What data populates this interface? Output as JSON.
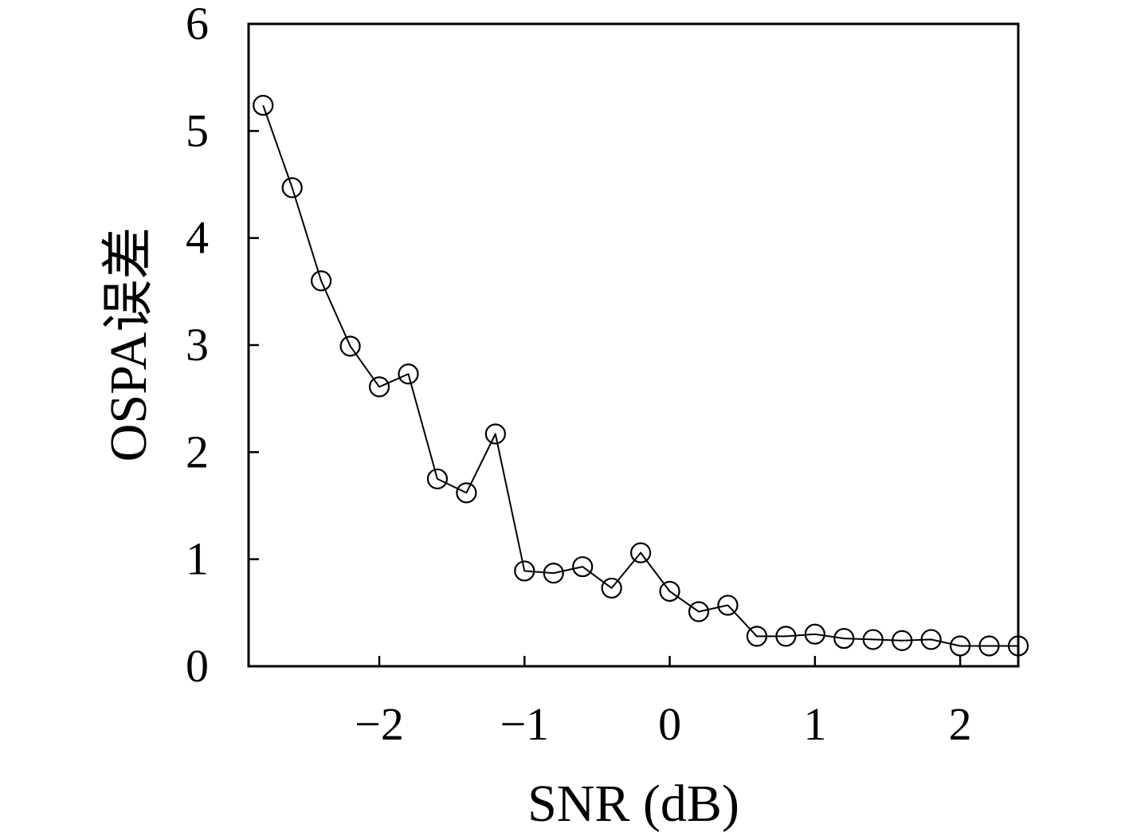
{
  "chart_data": {
    "type": "line",
    "xlabel": "SNR (dB)",
    "ylabel": "OSPA误差",
    "xlim": [
      -2.9,
      2.4
    ],
    "ylim": [
      0,
      6
    ],
    "xticks": [
      -2,
      -1,
      0,
      1,
      2
    ],
    "xtick_labels": [
      "−2",
      "−1",
      "0",
      "1",
      "2"
    ],
    "yticks": [
      0,
      1,
      2,
      3,
      4,
      5,
      6
    ],
    "ytick_labels": [
      "0",
      "1",
      "2",
      "3",
      "4",
      "5",
      "6"
    ],
    "grid": false,
    "line_color": "#000000",
    "x": [
      -2.8,
      -2.6,
      -2.4,
      -2.2,
      -2.0,
      -1.8,
      -1.6,
      -1.4,
      -1.2,
      -1.0,
      -0.8,
      -0.6,
      -0.4,
      -0.2,
      0.0,
      0.2,
      0.4,
      0.6,
      0.8,
      1.0,
      1.2,
      1.4,
      1.6,
      1.8,
      2.0,
      2.2,
      2.4
    ],
    "y": [
      5.24,
      4.47,
      3.6,
      2.99,
      2.61,
      2.73,
      1.75,
      1.62,
      2.17,
      0.89,
      0.87,
      0.93,
      0.73,
      1.06,
      0.7,
      0.51,
      0.57,
      0.28,
      0.28,
      0.3,
      0.26,
      0.25,
      0.24,
      0.25,
      0.19,
      0.19,
      0.19
    ]
  }
}
